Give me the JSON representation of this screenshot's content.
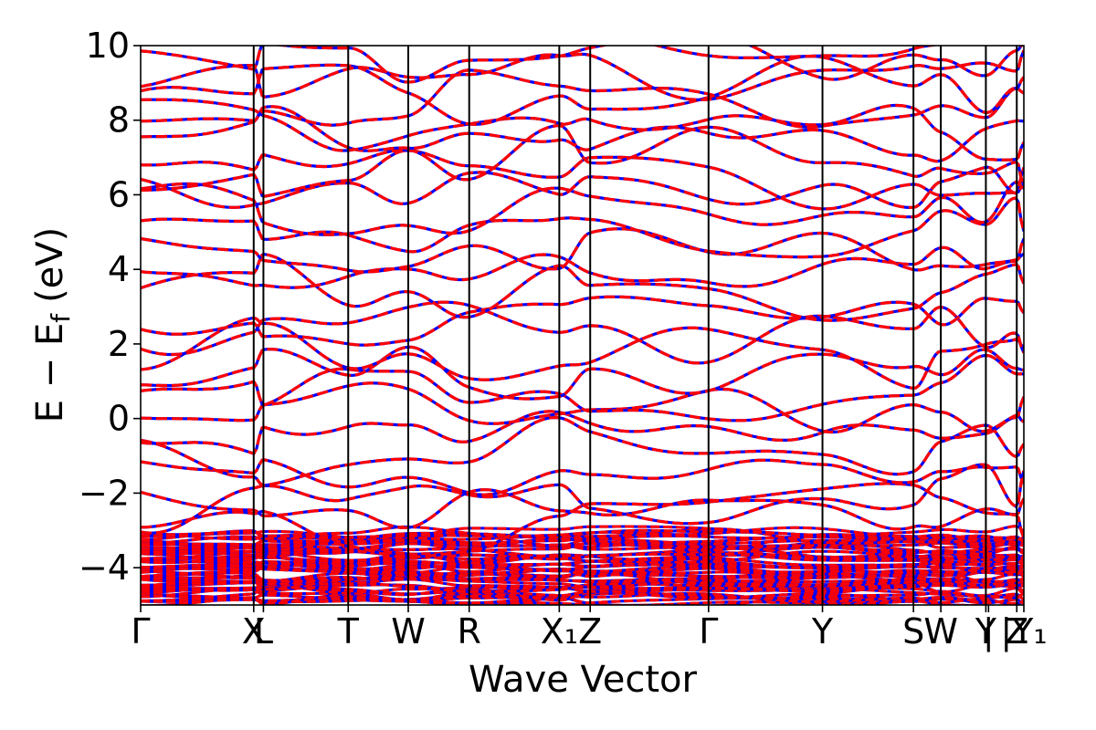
{
  "chart_data": {
    "type": "line",
    "xlabel": "Wave Vector",
    "ylabel": "E − E_f (eV)",
    "ylabel_parts": {
      "main": "E − E",
      "sub": "f",
      "unit": "(eV)"
    },
    "ylim": [
      -5,
      10
    ],
    "yticks": [
      -4,
      -2,
      0,
      2,
      4,
      6,
      8,
      10
    ],
    "ytick_labels": [
      "−4",
      "−2",
      "0",
      "2",
      "4",
      "6",
      "8",
      "10"
    ],
    "grid": false,
    "x_range": [
      0,
      1
    ],
    "high_symmetry_points": [
      {
        "label": "Γ",
        "x": 0.0
      },
      {
        "label": "X",
        "x": 0.128
      },
      {
        "label": "L",
        "x": 0.139
      },
      {
        "label": "T",
        "x": 0.235
      },
      {
        "label": "W",
        "x": 0.303
      },
      {
        "label": "R",
        "x": 0.372
      },
      {
        "label": "X₁",
        "x": 0.474
      },
      {
        "label": "Z",
        "x": 0.509
      },
      {
        "label": "Γ",
        "x": 0.643
      },
      {
        "label": "Y",
        "x": 0.772
      },
      {
        "label": "S",
        "x": 0.875
      },
      {
        "label": "W",
        "x": 0.906
      },
      {
        "label": "Y",
        "x": 0.957
      },
      {
        "label": "|",
        "x": 0.96
      },
      {
        "label": "Z",
        "x": 0.992
      },
      {
        "label": "|Y₁",
        "x": 1.0
      }
    ],
    "series": [
      {
        "color": "#0000ff",
        "style": "solid"
      },
      {
        "color": "#ff0000",
        "style": "dashed"
      }
    ],
    "approx_band_energies_at_gamma_eV": [
      -2.9,
      -1.9,
      0.2,
      0.8,
      2.1,
      2.4,
      2.6,
      4.8,
      5.6,
      6.3,
      7.0,
      7.8,
      8.5,
      9.3,
      9.6
    ],
    "dense_band_region_eV": [
      -5,
      -3
    ]
  }
}
